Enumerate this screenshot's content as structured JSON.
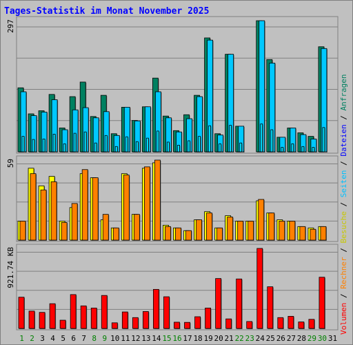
{
  "title": "Tages-Statistik im Monat November 2025",
  "colors": {
    "background": "#c0c0c0",
    "title": "#0000ff",
    "anfragen": "#008060",
    "dateien": "#00c8ff",
    "seiten": "#00e0ff",
    "besuche": "#ffff00",
    "rechner": "#ff8000",
    "volumen": "#ff0000",
    "weekday": "#000000",
    "weekend": "#008000"
  },
  "right_label_parts": [
    {
      "text": "Volumen",
      "color": "#ff0000"
    },
    {
      "text": " / ",
      "color": "#000000"
    },
    {
      "text": "Rechner",
      "color": "#ff8000"
    },
    {
      "text": " / ",
      "color": "#000000"
    },
    {
      "text": "Besuche",
      "color": "#c8c800"
    },
    {
      "text": " / ",
      "color": "#000000"
    },
    {
      "text": "Seiten",
      "color": "#00c0ff"
    },
    {
      "text": " / ",
      "color": "#000000"
    },
    {
      "text": "Dateien",
      "color": "#0000ff"
    },
    {
      "text": " / ",
      "color": "#000000"
    },
    {
      "text": "Anfragen",
      "color": "#008060"
    }
  ],
  "chart_data": {
    "type": "bar",
    "categories": [
      "1",
      "2",
      "3",
      "4",
      "5",
      "6",
      "7",
      "8",
      "9",
      "10",
      "11",
      "12",
      "13",
      "14",
      "15",
      "16",
      "17",
      "18",
      "19",
      "20",
      "21",
      "22",
      "23",
      "24",
      "25",
      "26",
      "27",
      "28",
      "29",
      "30",
      "31"
    ],
    "weekend_days": [
      "1",
      "2",
      "8",
      "9",
      "15",
      "16",
      "22",
      "23",
      "29",
      "30"
    ],
    "panels": [
      {
        "ymax_label": "297",
        "ymax": 297,
        "series": [
          {
            "name": "Anfragen",
            "values": [
              145,
              86,
              93,
              130,
              54,
              125,
              158,
              80,
              128,
              41,
              101,
              71,
              102,
              167,
              81,
              48,
              84,
              128,
              258,
              41,
              221,
              58,
              0,
              297,
              209,
              33,
              54,
              43,
              35,
              238,
              0
            ]
          },
          {
            "name": "Dateien",
            "values": [
              136,
              82,
              90,
              118,
              50,
              95,
              100,
              77,
              91,
              37,
              101,
              70,
              102,
              136,
              77,
              45,
              75,
              125,
              253,
              38,
              221,
              58,
              0,
              297,
              201,
              33,
              54,
              39,
              29,
              234,
              0
            ]
          },
          {
            "name": "Seiten",
            "values": [
              35,
              28,
              29,
              40,
              18,
              42,
              45,
              20,
              37,
              12,
              34,
              23,
              31,
              47,
              22,
              15,
              25,
              35,
              59,
              18,
              60,
              20,
              0,
              63,
              50,
              10,
              18,
              12,
              10,
              55,
              0
            ]
          }
        ]
      },
      {
        "ymax_label": "59",
        "ymax": 59,
        "series": [
          {
            "name": "Besuche",
            "values": [
              14,
              53,
              40,
              47,
              14,
              24,
              49,
              46,
              15,
              9,
              49,
              19,
              53,
              57,
              11,
              9,
              7,
              15,
              21,
              9,
              18,
              14,
              14,
              29,
              20,
              15,
              14,
              10,
              9,
              10,
              0
            ]
          },
          {
            "name": "Rechner",
            "values": [
              14,
              49,
              37,
              43,
              13,
              27,
              52,
              46,
              19,
              9,
              48,
              19,
              54,
              59,
              10,
              9,
              7,
              15,
              20,
              9,
              17,
              14,
              14,
              30,
              20,
              14,
              14,
              10,
              8,
              10,
              0
            ]
          }
        ]
      },
      {
        "ymax_label": "921.74 KB",
        "ymax": 921.74,
        "series": [
          {
            "name": "Volumen",
            "values": [
              360,
              200,
              185,
              285,
              95,
              390,
              260,
              235,
              380,
              65,
              190,
              125,
              195,
              450,
              365,
              72,
              70,
              135,
              235,
              575,
              110,
              570,
              80,
              921.74,
              480,
              125,
              140,
              75,
              105,
              590,
              0
            ]
          }
        ]
      }
    ]
  }
}
